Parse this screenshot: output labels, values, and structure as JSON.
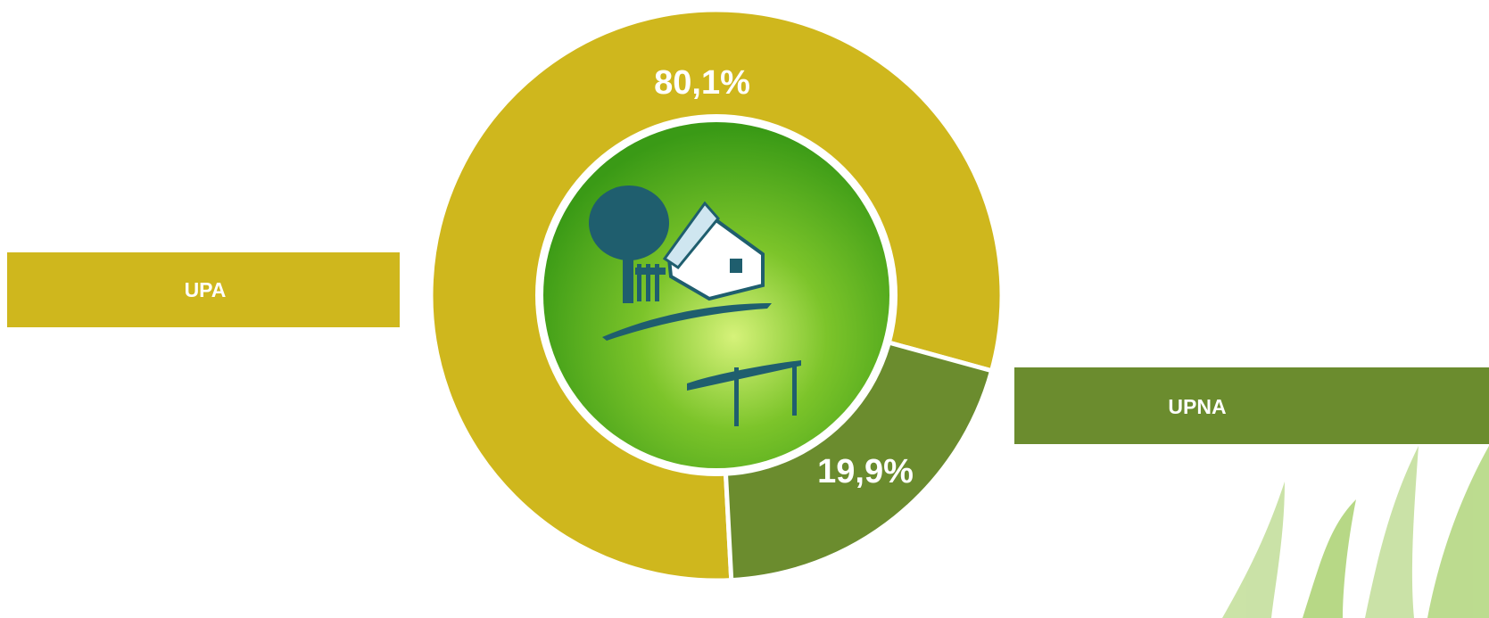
{
  "chart_data": {
    "type": "pie",
    "categories": [
      "UPA",
      "UPNA"
    ],
    "values": [
      80.1,
      19.9
    ],
    "value_labels": [
      "80,1%",
      "19,9%"
    ],
    "colors": [
      "#cfb71d",
      "#6b8c2e"
    ]
  }
}
